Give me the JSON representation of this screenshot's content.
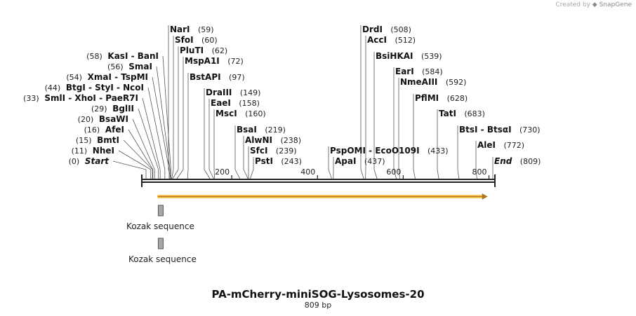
{
  "watermark": {
    "prefix": "Created by",
    "brand": "SnapGene"
  },
  "map": {
    "title": "PA-mCherry-miniSOG-Lysosomes-20",
    "length_label": "809 bp",
    "length_bp": 809,
    "ticks": [
      200,
      400,
      600,
      800
    ],
    "colors": {
      "orf_fill": "#ffc95a",
      "orf_stroke": "#b0761a",
      "feature": "#a8a8a8",
      "line": "#222222"
    }
  },
  "sites": [
    {
      "name": "Start",
      "pos": 0,
      "pos_label": "(0)",
      "italic": true
    },
    {
      "name": "NheI",
      "pos": 11,
      "pos_label": "(11)"
    },
    {
      "name": "BmtI",
      "pos": 15,
      "pos_label": "(15)"
    },
    {
      "name": "AfeI",
      "pos": 16,
      "pos_label": "(16)"
    },
    {
      "name": "BsaWI",
      "pos": 20,
      "pos_label": "(20)"
    },
    {
      "name": "BglII",
      "pos": 29,
      "pos_label": "(29)"
    },
    {
      "name": "SmlI - XhoI - PaeR7I",
      "pos": 33,
      "pos_label": "(33)"
    },
    {
      "name": "BtgI - StyI - NcoI",
      "pos": 44,
      "pos_label": "(44)"
    },
    {
      "name": "XmaI - TspMI",
      "pos": 54,
      "pos_label": "(54)"
    },
    {
      "name": "SmaI",
      "pos": 56,
      "pos_label": "(56)"
    },
    {
      "name": "KasI - BanI",
      "pos": 58,
      "pos_label": "(58)"
    },
    {
      "name": "NarI",
      "pos": 59,
      "pos_label": "(59)"
    },
    {
      "name": "SfoI",
      "pos": 60,
      "pos_label": "(60)"
    },
    {
      "name": "PluTI",
      "pos": 62,
      "pos_label": "(62)"
    },
    {
      "name": "MspA1I",
      "pos": 72,
      "pos_label": "(72)"
    },
    {
      "name": "BstAPI",
      "pos": 97,
      "pos_label": "(97)"
    },
    {
      "name": "DraIII",
      "pos": 149,
      "pos_label": "(149)"
    },
    {
      "name": "EaeI",
      "pos": 158,
      "pos_label": "(158)"
    },
    {
      "name": "MscI",
      "pos": 160,
      "pos_label": "(160)"
    },
    {
      "name": "BsaI",
      "pos": 219,
      "pos_label": "(219)"
    },
    {
      "name": "AlwNI",
      "pos": 238,
      "pos_label": "(238)"
    },
    {
      "name": "SfcI",
      "pos": 239,
      "pos_label": "(239)"
    },
    {
      "name": "PstI",
      "pos": 243,
      "pos_label": "(243)"
    },
    {
      "name": "PspOMI - EcoO109I",
      "pos": 433,
      "pos_label": "(433)"
    },
    {
      "name": "ApaI",
      "pos": 437,
      "pos_label": "(437)"
    },
    {
      "name": "DrdI",
      "pos": 508,
      "pos_label": "(508)"
    },
    {
      "name": "AccI",
      "pos": 512,
      "pos_label": "(512)"
    },
    {
      "name": "BsiHKAI",
      "pos": 539,
      "pos_label": "(539)"
    },
    {
      "name": "EarI",
      "pos": 584,
      "pos_label": "(584)"
    },
    {
      "name": "NmeAIII",
      "pos": 592,
      "pos_label": "(592)"
    },
    {
      "name": "PflMI",
      "pos": 628,
      "pos_label": "(628)"
    },
    {
      "name": "TatI",
      "pos": 683,
      "pos_label": "(683)"
    },
    {
      "name": "BtsI - BtsαI",
      "pos": 730,
      "pos_label": "(730)"
    },
    {
      "name": "AleI",
      "pos": 772,
      "pos_label": "(772)"
    },
    {
      "name": "End",
      "pos": 809,
      "pos_label": "(809)",
      "italic": true
    }
  ],
  "features": [
    {
      "label": "Kozak sequence",
      "start": 40,
      "end": 50
    },
    {
      "label": "Kozak sequence",
      "start": 40,
      "end": 50
    }
  ],
  "orf": {
    "start": 40,
    "end": 797,
    "direction": "forward"
  }
}
